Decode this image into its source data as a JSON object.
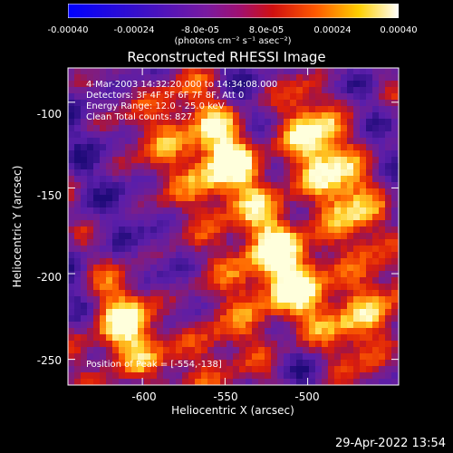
{
  "colorbar": {
    "ticks": [
      "-0.00040",
      "-0.00024",
      "-8.0e-05",
      "8.0e-05",
      "0.00024",
      "0.00040"
    ],
    "units": "(photons cm⁻² s⁻¹ asec⁻²)"
  },
  "plot": {
    "title": "Reconstructed RHESSI Image",
    "info": {
      "time": "4-Mar-2003 14:32:20.000 to 14:34:08.000",
      "detectors": "Detectors: 3F 4F 5F 6F 7F 8F, Att 0",
      "energy": "Energy Range: 12.0 - 25.0 keV",
      "clean": "Clean     Total counts: 827."
    },
    "peak": "Position of Peak = [-554,-138]"
  },
  "chart_data": {
    "type": "heatmap",
    "title": "Reconstructed RHESSI Image",
    "xlabel": "Heliocentric X (arcsec)",
    "ylabel": "Heliocentric Y (arcsec)",
    "x_ticks": [
      "-600",
      "-550",
      "-500"
    ],
    "y_ticks": [
      "-100",
      "-150",
      "-200",
      "-250"
    ],
    "xlim": [
      -645,
      -445
    ],
    "ylim": [
      -265,
      -80
    ],
    "color_range": [
      -0.0004,
      0.0004
    ],
    "peak_position": [
      -554,
      -138
    ],
    "hot_spots": [
      {
        "x": -554,
        "y": -138,
        "intensity": 1.0
      },
      {
        "x": -612,
        "y": -234,
        "intensity": 0.9
      },
      {
        "x": -498,
        "y": -122,
        "intensity": 0.85
      },
      {
        "x": -465,
        "y": -225,
        "intensity": 0.8
      },
      {
        "x": -530,
        "y": -188,
        "intensity": 0.7
      },
      {
        "x": -510,
        "y": -210,
        "intensity": 0.75
      },
      {
        "x": -585,
        "y": -110,
        "intensity": 0.6
      },
      {
        "x": -475,
        "y": -160,
        "intensity": 0.7
      },
      {
        "x": -560,
        "y": -250,
        "intensity": 0.55
      }
    ]
  },
  "footer": {
    "timestamp": "29-Apr-2022 13:54"
  }
}
